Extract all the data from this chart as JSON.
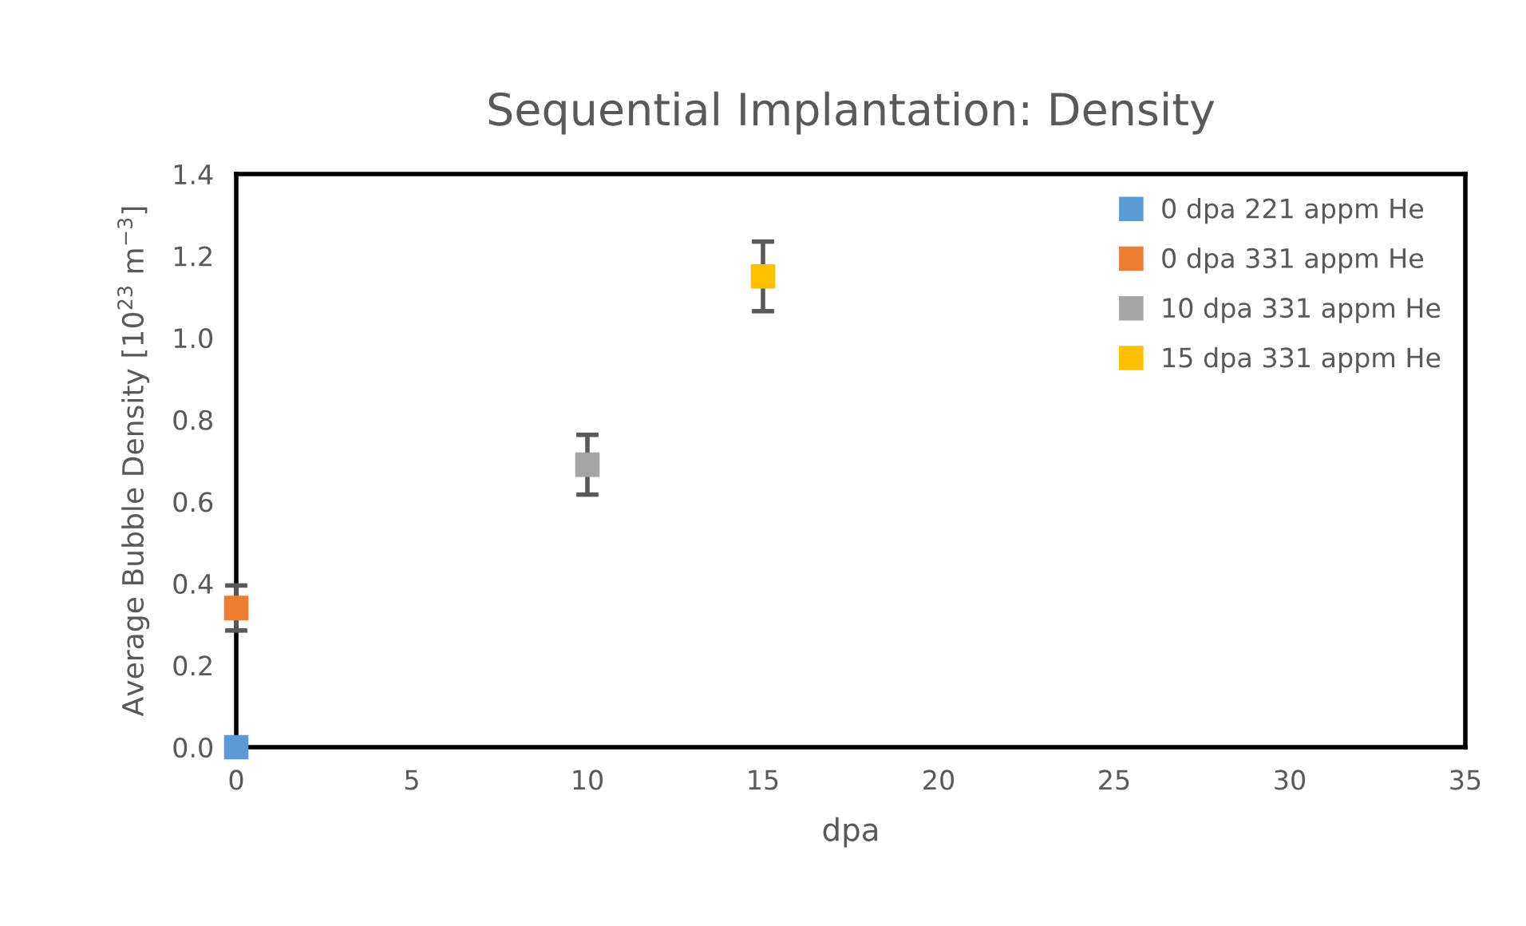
{
  "chart_data": {
    "type": "scatter",
    "title": "Sequential Implantation: Density",
    "xlabel": "dpa",
    "ylabel": "Average Bubble Density [10$^{23}$ m$^{−3}$]",
    "series": [
      {
        "name": "0 dpa 221 appm He",
        "color": "#5b9bd5",
        "x": [
          0
        ],
        "values": [
          0.0
        ]
      },
      {
        "name": "0 dpa 331 appm He",
        "color": "#ed7d31",
        "x": [
          0
        ],
        "values": [
          0.34
        ],
        "errors": [
          0.055
        ]
      },
      {
        "name": "10 dpa 331 appm He",
        "color": "#a5a5a5",
        "x": [
          10
        ],
        "values": [
          0.69
        ],
        "errors": [
          0.073
        ]
      },
      {
        "name": "15 dpa 331 appm He",
        "color": "#ffc000",
        "x": [
          15
        ],
        "values": [
          1.15
        ],
        "errors": [
          0.085
        ]
      }
    ],
    "xlim": [
      0,
      35
    ],
    "xticks": [
      0,
      5,
      10,
      15,
      20,
      25,
      30,
      35
    ],
    "ylim": [
      0,
      1.4
    ],
    "yticks": [
      {
        "value": 0,
        "label": "0.0"
      },
      {
        "value": 0.2,
        "label": "0.2"
      },
      {
        "value": 0.4,
        "label": "0.4"
      },
      {
        "value": 0.6,
        "label": "0.6"
      },
      {
        "value": 0.8,
        "label": "0.8"
      },
      {
        "value": 1.0,
        "label": "1.0"
      },
      {
        "value": 1.2,
        "label": "1.2"
      },
      {
        "value": 1.4,
        "label": "1.4"
      }
    ],
    "marker": "square",
    "grid": false,
    "legend": "top right"
  }
}
